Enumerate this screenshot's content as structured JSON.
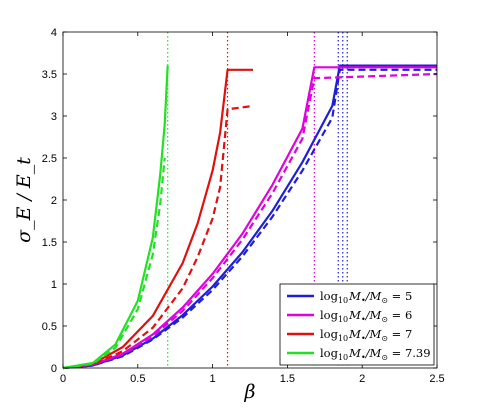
{
  "chart_data": {
    "type": "line",
    "title": "",
    "xlabel": "β",
    "ylabel": "σ_E / E_t",
    "xlim": [
      0,
      2.5
    ],
    "ylim": [
      0,
      4
    ],
    "xticks": [
      "0",
      "0.5",
      "1",
      "1.5",
      "2",
      "2.5"
    ],
    "yticks": [
      "0",
      "0.5",
      "1",
      "1.5",
      "2",
      "2.5",
      "3",
      "3.5",
      "4"
    ],
    "grid": false,
    "legend_position": "bottom-right",
    "series": [
      {
        "name": "log10 M•/M⊙ = 5",
        "legend": {
          "pre": "log",
          "sub": "10",
          "mid": "M",
          "bullet": "•",
          "over": "/M",
          "sun": "⊙",
          "eq": " = 5"
        },
        "color": "#1f1fd6",
        "solid": {
          "x": [
            0,
            0.2,
            0.4,
            0.6,
            0.8,
            1.0,
            1.2,
            1.4,
            1.6,
            1.8,
            1.85,
            2.5
          ],
          "y": [
            0,
            0.03,
            0.15,
            0.35,
            0.63,
            0.97,
            1.38,
            1.87,
            2.45,
            3.12,
            3.6,
            3.6
          ]
        },
        "dashed": {
          "x": [
            0,
            0.2,
            0.4,
            0.6,
            0.8,
            1.0,
            1.2,
            1.4,
            1.6,
            1.8,
            1.85,
            2.5
          ],
          "y": [
            0,
            0.03,
            0.14,
            0.34,
            0.6,
            0.93,
            1.33,
            1.8,
            2.35,
            2.98,
            3.55,
            3.55
          ]
        },
        "marker_x": [
          1.84,
          1.87,
          1.9
        ]
      },
      {
        "name": "log10 M•/M⊙ = 6",
        "legend": {
          "pre": "log",
          "sub": "10",
          "mid": "M",
          "bullet": "•",
          "over": "/M",
          "sun": "⊙",
          "eq": " = 6"
        },
        "color": "#e000e0",
        "solid": {
          "x": [
            0,
            0.2,
            0.4,
            0.6,
            0.8,
            1.0,
            1.2,
            1.4,
            1.6,
            1.68,
            2.5
          ],
          "y": [
            0,
            0.04,
            0.17,
            0.4,
            0.72,
            1.12,
            1.6,
            2.18,
            2.85,
            3.58,
            3.58
          ]
        },
        "dashed": {
          "x": [
            0,
            0.2,
            0.4,
            0.6,
            0.8,
            1.0,
            1.2,
            1.4,
            1.6,
            1.68,
            2.5
          ],
          "y": [
            0,
            0.04,
            0.16,
            0.38,
            0.68,
            1.07,
            1.53,
            2.08,
            2.73,
            3.45,
            3.5
          ]
        },
        "marker_x": [
          1.68
        ]
      },
      {
        "name": "log10 M•/M⊙ = 7",
        "legend": {
          "pre": "log",
          "sub": "10",
          "mid": "M",
          "bullet": "•",
          "over": "/M",
          "sun": "⊙",
          "eq": " = 7"
        },
        "color": "#e01010",
        "solid": {
          "x": [
            0,
            0.2,
            0.4,
            0.6,
            0.8,
            0.9,
            1.0,
            1.05,
            1.1,
            1.27
          ],
          "y": [
            0,
            0.05,
            0.25,
            0.62,
            1.25,
            1.72,
            2.35,
            2.8,
            3.55,
            3.55
          ]
        },
        "dashed": {
          "x": [
            0,
            0.2,
            0.4,
            0.6,
            0.8,
            0.9,
            1.0,
            1.05,
            1.1,
            1.27
          ],
          "y": [
            0,
            0.04,
            0.2,
            0.48,
            0.95,
            1.32,
            1.78,
            2.15,
            3.08,
            3.12
          ]
        },
        "marker_x": [
          1.1
        ]
      },
      {
        "name": "log10 M•/M⊙ = 7.39",
        "legend": {
          "pre": "log",
          "sub": "10",
          "mid": "M",
          "bullet": "•",
          "over": "/M",
          "sun": "⊙",
          "eq": " = 7.39"
        },
        "color": "#22e022",
        "solid": {
          "x": [
            0,
            0.2,
            0.35,
            0.5,
            0.6,
            0.65,
            0.68,
            0.7
          ],
          "y": [
            0,
            0.06,
            0.28,
            0.8,
            1.55,
            2.3,
            2.9,
            3.6
          ]
        },
        "dashed": {
          "x": [
            0,
            0.2,
            0.35,
            0.5,
            0.6,
            0.65,
            0.68
          ],
          "y": [
            0,
            0.05,
            0.24,
            0.7,
            1.35,
            1.95,
            2.5
          ]
        },
        "marker_x": [
          0.7
        ]
      }
    ]
  }
}
